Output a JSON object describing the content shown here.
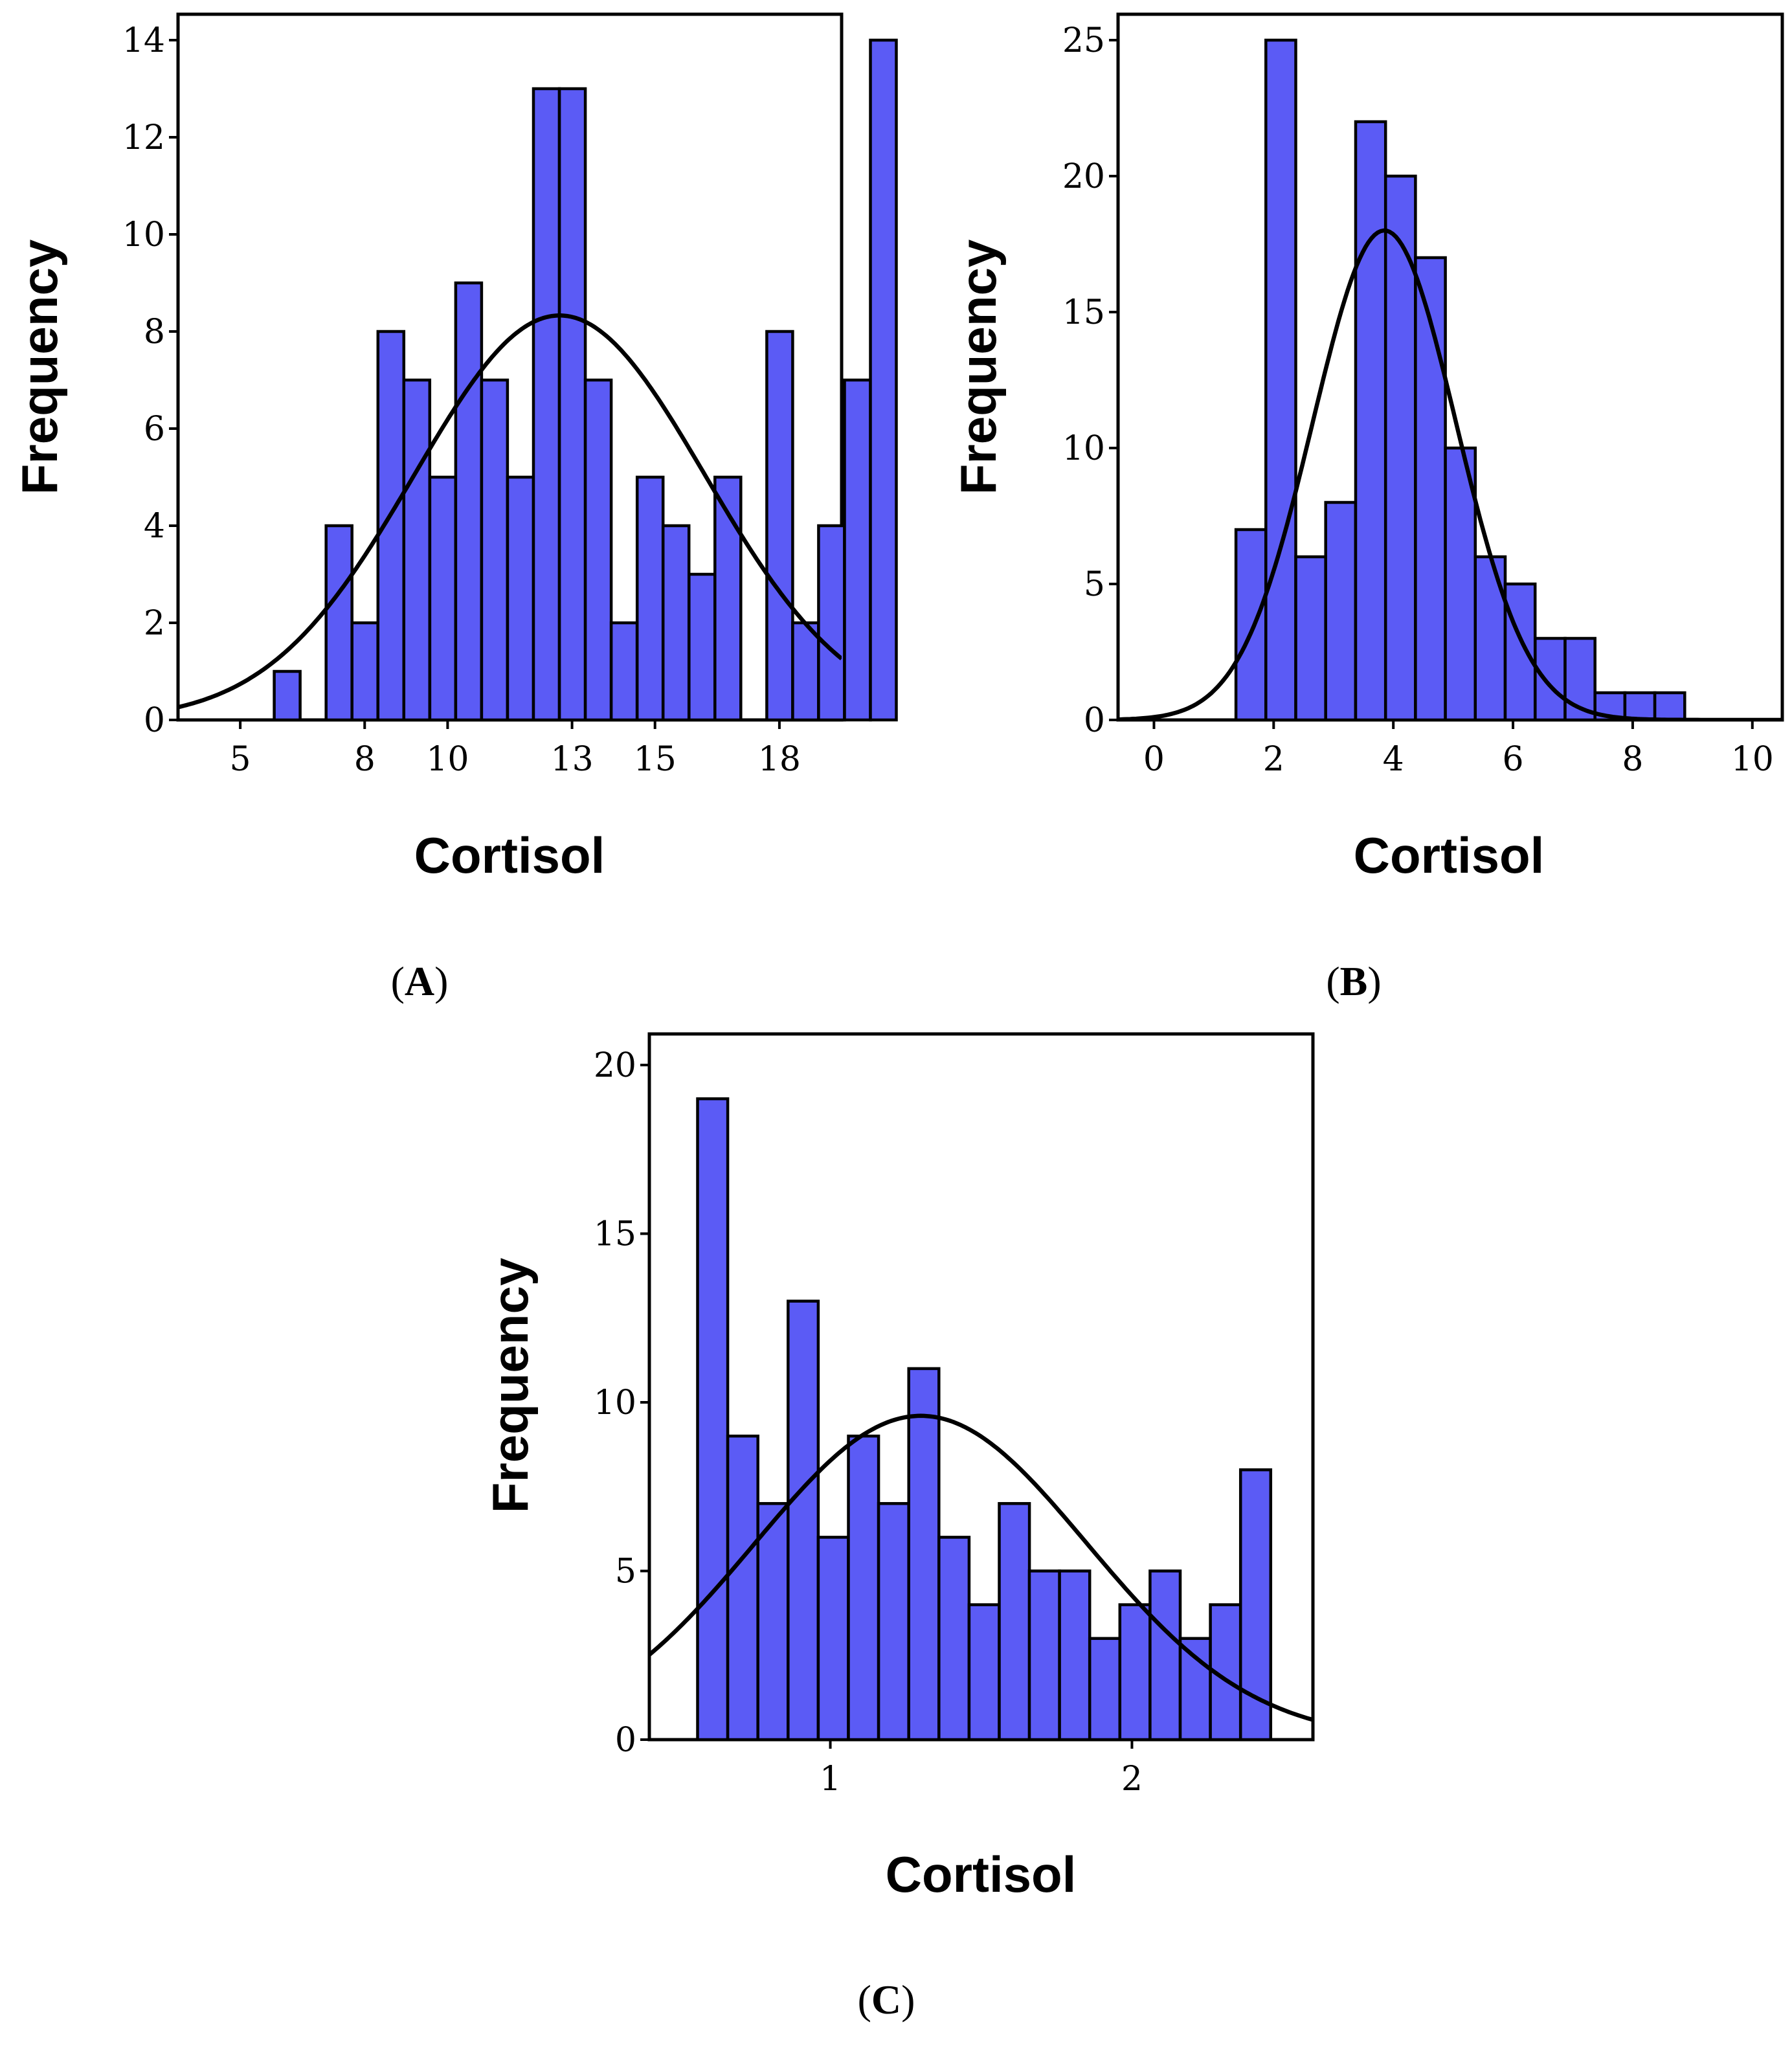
{
  "figure": {
    "bar_color": "#5b5bf5",
    "line_color": "#000000"
  },
  "chart_data": [
    {
      "id": "A",
      "type": "bar",
      "panel_label": "A",
      "xlabel": "Cortisol",
      "ylabel": "Frequency",
      "xlim": [
        3.5,
        19.5
      ],
      "ylim": [
        0,
        14
      ],
      "xticks": [
        5,
        8,
        10,
        13,
        15,
        18
      ],
      "yticks": [
        0,
        2,
        4,
        6,
        8,
        10,
        12,
        14
      ],
      "bin_start": 5.82,
      "bin_width": 0.625,
      "values": [
        1,
        0,
        4,
        2,
        8,
        7,
        5,
        9,
        7,
        5,
        13,
        13,
        7,
        2,
        5,
        4,
        3,
        5,
        0,
        8,
        2,
        4,
        7,
        14
      ],
      "normal_curve": {
        "mean": 12.7,
        "sd": 3.5,
        "peak": 8.33
      }
    },
    {
      "id": "B",
      "type": "bar",
      "panel_label": "B",
      "xlabel": "Cortisol",
      "ylabel": "Frequency",
      "xlim": [
        -0.6,
        10.5
      ],
      "ylim": [
        0,
        25
      ],
      "xticks": [
        0,
        2,
        4,
        6,
        8,
        10
      ],
      "yticks": [
        0,
        5,
        10,
        15,
        20,
        25
      ],
      "bin_start": 1.37,
      "bin_width": 0.5,
      "values": [
        7,
        25,
        6,
        8,
        22,
        20,
        17,
        10,
        6,
        5,
        3,
        3,
        1,
        1,
        1
      ],
      "normal_curve": {
        "mean": 3.85,
        "sd": 1.2,
        "peak": 18
      }
    },
    {
      "id": "C",
      "type": "bar",
      "panel_label": "C",
      "xlabel": "Cortisol",
      "ylabel": "Frequency",
      "xlim": [
        0.4,
        2.6
      ],
      "ylim": [
        0,
        20
      ],
      "xticks": [
        1,
        2
      ],
      "yticks": [
        0,
        5,
        10,
        15,
        20
      ],
      "bin_start": 0.56,
      "bin_width": 0.1,
      "values": [
        19,
        9,
        7,
        13,
        6,
        9,
        7,
        11,
        6,
        4,
        7,
        5,
        5,
        3,
        4,
        5,
        3,
        4,
        8
      ],
      "normal_curve": {
        "mean": 1.3,
        "sd": 0.55,
        "peak": 9.6
      }
    }
  ]
}
